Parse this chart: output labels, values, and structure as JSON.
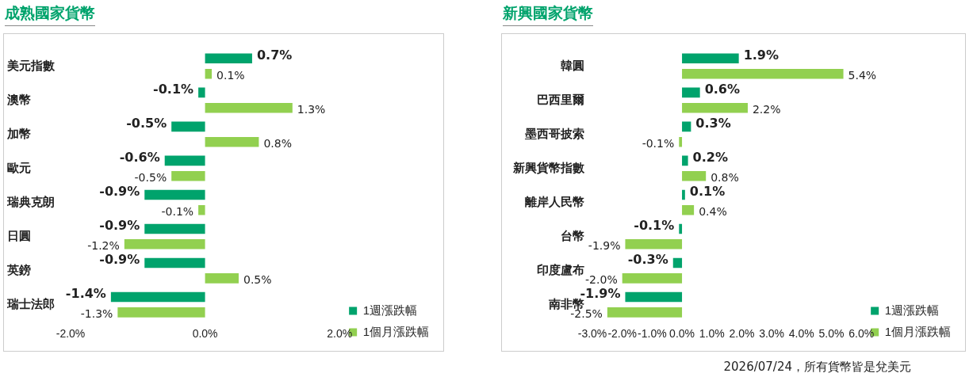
{
  "chart_data": [
    {
      "type": "bar",
      "orientation": "horizontal",
      "title": "成熟國家貨幣",
      "categories": [
        "美元指數",
        "澳幣",
        "加幣",
        "歐元",
        "瑞典克朗",
        "日圓",
        "英鎊",
        "瑞士法郎"
      ],
      "series": [
        {
          "name": "1週漲跌幅",
          "color": "#00a36c",
          "values": [
            0.7,
            -0.1,
            -0.5,
            -0.6,
            -0.9,
            -0.9,
            -0.9,
            -1.4
          ],
          "value_labels": [
            "0.7%",
            "-0.1%",
            "-0.5%",
            "-0.6%",
            "-0.9%",
            "-0.9%",
            "-0.9%",
            "-1.4%"
          ]
        },
        {
          "name": "1個月漲跌幅",
          "color": "#92d050",
          "values": [
            0.1,
            1.3,
            0.8,
            -0.5,
            -0.1,
            -1.2,
            0.5,
            -1.3
          ],
          "value_labels": [
            "0.1%",
            "1.3%",
            "0.8%",
            "-0.5%",
            "-0.1%",
            "-1.2%",
            "0.5%",
            "-1.3%"
          ]
        }
      ],
      "xlim": [
        -2,
        2
      ],
      "xticks": [
        {
          "value": -2,
          "label": "-2.0%"
        },
        {
          "value": 0,
          "label": "0.0%"
        },
        {
          "value": 2,
          "label": "2.0%"
        }
      ],
      "grid": false,
      "legend": "bottom right"
    },
    {
      "type": "bar",
      "orientation": "horizontal",
      "title": "新興國家貨幣",
      "categories": [
        "韓圓",
        "巴西里爾",
        "墨西哥披索",
        "新興貨幣指數",
        "離岸人民幣",
        "台幣",
        "印度盧布",
        "南非幣"
      ],
      "series": [
        {
          "name": "1週漲跌幅",
          "color": "#00a36c",
          "values": [
            1.9,
            0.6,
            0.3,
            0.2,
            0.1,
            -0.1,
            -0.3,
            -1.9
          ],
          "value_labels": [
            "1.9%",
            "0.6%",
            "0.3%",
            "0.2%",
            "0.1%",
            "-0.1%",
            "-0.3%",
            "-1.9%"
          ]
        },
        {
          "name": "1個月漲跌幅",
          "color": "#92d050",
          "values": [
            5.4,
            2.2,
            -0.1,
            0.8,
            0.4,
            -1.9,
            -2.0,
            -2.5
          ],
          "value_labels": [
            "5.4%",
            "2.2%",
            "-0.1%",
            "0.8%",
            "0.4%",
            "-1.9%",
            "-2.0%",
            "-2.5%"
          ]
        }
      ],
      "xlim": [
        -3,
        6
      ],
      "xticks": [
        {
          "value": -3,
          "label": "-3.0%"
        },
        {
          "value": -2,
          "label": "-2.0%"
        },
        {
          "value": -1,
          "label": "-1.0%"
        },
        {
          "value": 0,
          "label": "0.0%"
        },
        {
          "value": 1,
          "label": "1.0%"
        },
        {
          "value": 2,
          "label": "2.0%"
        },
        {
          "value": 3,
          "label": "3.0%"
        },
        {
          "value": 4,
          "label": "4.0%"
        },
        {
          "value": 5,
          "label": "5.0%"
        },
        {
          "value": 6,
          "label": "6.0%"
        }
      ],
      "grid": false,
      "legend": "bottom right",
      "annotations": [
        "2026/07/24，所有貨幣皆是兌美元"
      ]
    }
  ]
}
